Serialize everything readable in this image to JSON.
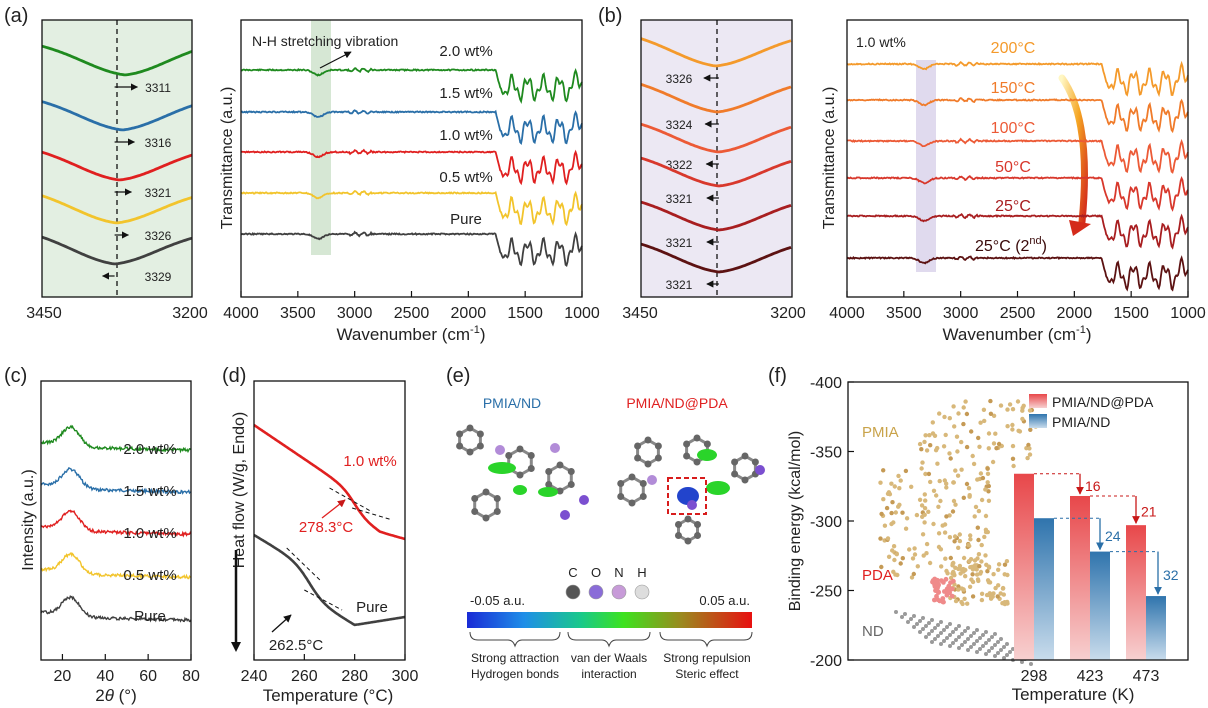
{
  "panel_labels": {
    "a": "(a)",
    "b": "(b)",
    "c": "(c)",
    "d": "(d)",
    "e": "(e)",
    "f": "(f)"
  },
  "colors": {
    "green": "#1f8a1f",
    "blue": "#2a6fa8",
    "red": "#e02020",
    "yellow": "#f2c42c",
    "dark": "#404040",
    "shade_green": "#e3efe2",
    "shade_purple": "#ece8f3",
    "o200": "#f49a2b",
    "o150": "#f07b2a",
    "o100": "#ec5a36",
    "o50": "#d8382c",
    "o25": "#a81e20",
    "o25b": "#5c1212"
  },
  "chart_data": [
    {
      "id": "a_zoom",
      "type": "line",
      "xlim": [
        3450,
        3200
      ],
      "xticks": [
        3450,
        3200
      ],
      "dashed_x": 3329,
      "series": [
        {
          "name": "2.0 wt%",
          "color": "green",
          "peak": 3311,
          "label": "3311"
        },
        {
          "name": "1.5 wt%",
          "color": "blue",
          "peak": 3316,
          "label": "3316"
        },
        {
          "name": "1.0 wt%",
          "color": "red",
          "peak": 3321,
          "label": "3321"
        },
        {
          "name": "0.5 wt%",
          "color": "yellow",
          "peak": 3326,
          "label": "3326"
        },
        {
          "name": "Pure",
          "color": "dark",
          "peak": 3329,
          "label": "3329"
        }
      ]
    },
    {
      "id": "a_full",
      "type": "line",
      "xlim": [
        4000,
        1000
      ],
      "xticks": [
        4000,
        3500,
        3000,
        2500,
        2000,
        1500,
        1000
      ],
      "xlabel": "Wavenumber (cm",
      "xlabel_sup": "-1",
      "xlabel_end": ")",
      "ylabel": "Transmittance (a.u.)",
      "annotation": "N-H stretching vibration",
      "band": [
        3380,
        3220
      ],
      "series": [
        {
          "name": "2.0 wt%",
          "color": "green"
        },
        {
          "name": "1.5 wt%",
          "color": "blue"
        },
        {
          "name": "1.0 wt%",
          "color": "red"
        },
        {
          "name": "0.5 wt%",
          "color": "yellow"
        },
        {
          "name": "Pure",
          "color": "dark"
        }
      ]
    },
    {
      "id": "b_zoom",
      "type": "line",
      "xlim": [
        3450,
        3200
      ],
      "xticks": [
        3450,
        3200
      ],
      "dashed_x": 3321,
      "series": [
        {
          "name": "200°C",
          "color": "o200",
          "peak": 3326,
          "label": "3326"
        },
        {
          "name": "150°C",
          "color": "o150",
          "peak": 3324,
          "label": "3324"
        },
        {
          "name": "100°C",
          "color": "o100",
          "peak": 3322,
          "label": "3322"
        },
        {
          "name": "50°C",
          "color": "o50",
          "peak": 3321,
          "label": "3321"
        },
        {
          "name": "25°C",
          "color": "o25",
          "peak": 3321,
          "label": "3321"
        },
        {
          "name": "25°C (2nd)",
          "color": "o25b",
          "peak": 3321,
          "label": "3321"
        }
      ]
    },
    {
      "id": "b_full",
      "type": "line",
      "xlim": [
        4000,
        1000
      ],
      "xticks": [
        4000,
        3500,
        3000,
        2500,
        2000,
        1500,
        1000
      ],
      "xlabel": "Wavenumber (cm",
      "xlabel_sup": "-1",
      "xlabel_end": ")",
      "ylabel": "Transmittance (a.u.)",
      "inset_label": "1.0 wt%",
      "band": [
        3380,
        3230
      ],
      "series": [
        {
          "name": "200°C",
          "color": "o200",
          "label": "200°C"
        },
        {
          "name": "150°C",
          "color": "o150",
          "label": "150°C"
        },
        {
          "name": "100°C",
          "color": "o100",
          "label": "100°C"
        },
        {
          "name": "50°C",
          "color": "o50",
          "label": "50°C"
        },
        {
          "name": "25°C",
          "color": "o25",
          "label": "25°C"
        },
        {
          "name": "25°C (2nd)",
          "color": "o25b",
          "label": "25°C (2",
          "label_sup": "nd",
          "label_end": ")"
        }
      ]
    },
    {
      "id": "c_xrd",
      "type": "line",
      "xlim": [
        10,
        80
      ],
      "xticks": [
        20,
        40,
        60,
        80
      ],
      "xlabel": "2θ (°)",
      "ylabel": "Intensity (a.u.)",
      "peak_2theta": 24,
      "series": [
        {
          "name": "2.0 wt%",
          "color": "green"
        },
        {
          "name": "1.5 wt%",
          "color": "blue"
        },
        {
          "name": "1.0 wt%",
          "color": "red"
        },
        {
          "name": "0.5 wt%",
          "color": "yellow"
        },
        {
          "name": "Pure",
          "color": "dark"
        }
      ]
    },
    {
      "id": "d_dsc",
      "type": "line",
      "xlim": [
        240,
        300
      ],
      "xticks": [
        240,
        260,
        280,
        300
      ],
      "xlabel": "Temperature (°C)",
      "ylabel": "Heat flow (W/g, Endo)",
      "series": [
        {
          "name": "1.0 wt%",
          "color": "red",
          "tg": 278.3,
          "tg_label": "278.3°C"
        },
        {
          "name": "Pure",
          "color": "dark",
          "tg": 262.5,
          "tg_label": "262.5°C"
        }
      ]
    },
    {
      "id": "e_igm",
      "type": "other",
      "titles": [
        "PMIA/ND",
        "PMIA/ND@PDA"
      ],
      "atoms": [
        "C",
        "O",
        "N",
        "H"
      ],
      "scale_min": "-0.05 a.u.",
      "scale_max": "0.05 a.u.",
      "regions": [
        {
          "line1": "Strong attraction",
          "line2": "Hydrogen bonds"
        },
        {
          "line1": "van der Waals",
          "line2": "interaction"
        },
        {
          "line1": "Strong repulsion",
          "line2": "Steric effect"
        }
      ]
    },
    {
      "id": "f_binding",
      "type": "bar",
      "categories": [
        "298",
        "423",
        "473"
      ],
      "series": [
        {
          "name": "PMIA/ND@PDA",
          "values": [
            -334,
            -318,
            -297
          ]
        },
        {
          "name": "PMIA/ND",
          "values": [
            -302,
            -278,
            -246
          ]
        }
      ],
      "differences": [
        "16",
        "24",
        "21",
        "32"
      ],
      "ylim": [
        -200,
        -400
      ],
      "yticks": [
        -400,
        -350,
        -300,
        -250,
        -200
      ],
      "ylabel": "Binding energy (kcal/mol)",
      "xlabel": "Temperature (K)",
      "model_labels": {
        "pmia": "PMIA",
        "pda": "PDA",
        "nd": "ND"
      }
    }
  ]
}
